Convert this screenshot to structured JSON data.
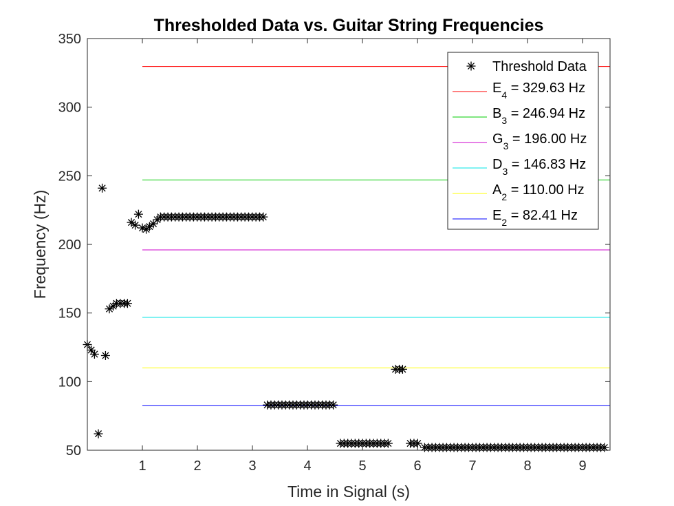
{
  "chart_data": {
    "type": "scatter",
    "title": "Thresholded Data vs. Guitar String Frequencies",
    "xlabel": "Time in Signal (s)",
    "ylabel": "Frequency (Hz)",
    "xlim": [
      0,
      9.5
    ],
    "ylim": [
      50,
      350
    ],
    "xticks": [
      1,
      2,
      3,
      4,
      5,
      6,
      7,
      8,
      9
    ],
    "yticks": [
      50,
      100,
      150,
      200,
      250,
      300,
      350
    ],
    "grid": false,
    "legend_position": "top-right",
    "scatter_series": {
      "name": "Threshold Data",
      "marker": "asterisk",
      "color": "#000000",
      "segments": [
        {
          "points": [
            [
              0.0,
              127
            ],
            [
              0.07,
              123
            ],
            [
              0.13,
              120
            ],
            [
              0.2,
              62
            ],
            [
              0.27,
              241
            ],
            [
              0.33,
              119
            ],
            [
              0.4,
              153
            ],
            [
              0.47,
              155
            ],
            [
              0.53,
              157
            ],
            [
              0.6,
              157
            ],
            [
              0.67,
              157
            ],
            [
              0.73,
              157
            ],
            [
              0.8,
              216
            ],
            [
              0.87,
              214
            ],
            [
              0.93,
              222
            ],
            [
              1.0,
              212
            ],
            [
              1.07,
              211
            ],
            [
              1.13,
              213
            ],
            [
              1.2,
              215
            ],
            [
              1.27,
              218
            ]
          ]
        },
        {
          "start": 1.33,
          "end": 3.2,
          "step": 0.0667,
          "y": 220
        },
        {
          "start": 3.27,
          "end": 4.53,
          "step": 0.0667,
          "y": 83
        },
        {
          "start": 4.6,
          "end": 5.53,
          "step": 0.0667,
          "y": 55
        },
        {
          "points": [
            [
              5.6,
              109
            ],
            [
              5.67,
              109
            ],
            [
              5.73,
              109
            ]
          ]
        },
        {
          "start": 5.87,
          "end": 6.07,
          "step": 0.0667,
          "y": 55
        },
        {
          "start": 6.13,
          "end": 9.4,
          "step": 0.0667,
          "y": 52
        }
      ]
    },
    "reference_lines": [
      {
        "label": "E",
        "sub": "4",
        "freq_text": " = 329.63 Hz",
        "y": 329.63,
        "x_start": 1,
        "color": "#ff0000"
      },
      {
        "label": "B",
        "sub": "3",
        "freq_text": " = 246.94 Hz",
        "y": 246.94,
        "x_start": 1,
        "color": "#00cc00"
      },
      {
        "label": "G",
        "sub": "3",
        "freq_text": " = 196.00 Hz",
        "y": 196.0,
        "x_start": 1,
        "color": "#cc00cc"
      },
      {
        "label": "D",
        "sub": "3",
        "freq_text": " = 146.83 Hz",
        "y": 146.83,
        "x_start": 1,
        "color": "#00e6e6"
      },
      {
        "label": "A",
        "sub": "2",
        "freq_text": " = 110.00 Hz",
        "y": 110.0,
        "x_start": 1,
        "color": "#ffff00"
      },
      {
        "label": "E",
        "sub": "2",
        "freq_text": " = 82.41 Hz",
        "y": 82.41,
        "x_start": 1,
        "color": "#0000ff"
      }
    ]
  }
}
